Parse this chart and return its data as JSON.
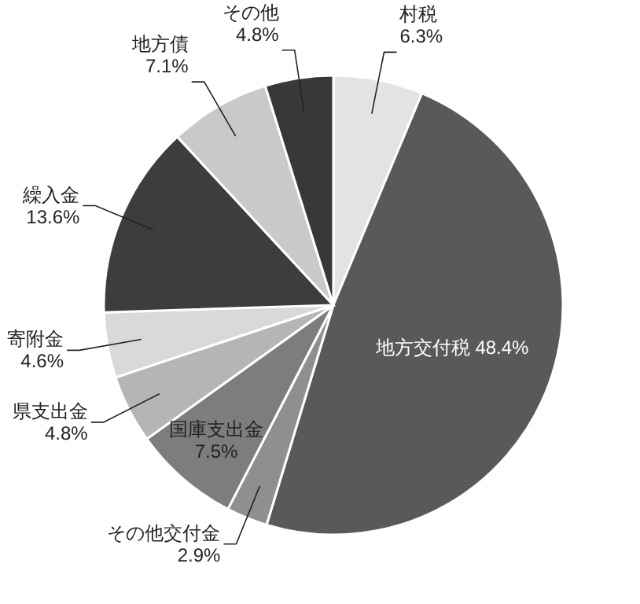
{
  "chart_data": {
    "type": "pie",
    "categories": [
      "村税",
      "地方交付税",
      "その他交付金",
      "国庫支出金",
      "県支出金",
      "寄附金",
      "繰入金",
      "地方債",
      "その他"
    ],
    "values": [
      6.3,
      48.4,
      2.9,
      7.5,
      4.8,
      4.6,
      13.6,
      7.1,
      4.8
    ],
    "value_labels": [
      "6.3%",
      "48.4%",
      "2.9%",
      "7.5%",
      "4.8%",
      "4.6%",
      "13.6%",
      "7.1%",
      "4.8%"
    ],
    "colors": [
      "#e3e3e3",
      "#595959",
      "#8f8f8f",
      "#7d7d7d",
      "#b5b5b5",
      "#d9d9d9",
      "#3d3d3d",
      "#c9c9c9",
      "#383838"
    ]
  }
}
